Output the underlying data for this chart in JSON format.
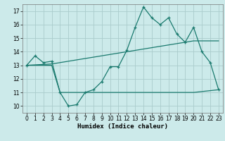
{
  "xlabel": "Humidex (Indice chaleur)",
  "background_color": "#cceaea",
  "grid_color": "#aacccc",
  "line_color": "#1a7a6e",
  "xlim": [
    -0.5,
    23.5
  ],
  "ylim": [
    9.5,
    17.5
  ],
  "yticks": [
    10,
    11,
    12,
    13,
    14,
    15,
    16,
    17
  ],
  "xticks": [
    0,
    1,
    2,
    3,
    4,
    5,
    6,
    7,
    8,
    9,
    10,
    11,
    12,
    13,
    14,
    15,
    16,
    17,
    18,
    19,
    20,
    21,
    22,
    23
  ],
  "line1_x": [
    0,
    1,
    2,
    3,
    4,
    5,
    6,
    7,
    8,
    9,
    10,
    11,
    12,
    13,
    14,
    15,
    16,
    17,
    18,
    19,
    20,
    21,
    22,
    23
  ],
  "line1_y": [
    13.0,
    13.7,
    13.2,
    13.3,
    11.0,
    10.0,
    10.1,
    11.0,
    11.2,
    11.8,
    12.9,
    12.9,
    14.1,
    15.8,
    17.3,
    16.5,
    16.0,
    16.5,
    15.3,
    14.7,
    15.8,
    14.0,
    13.2,
    11.2
  ],
  "line2_x": [
    0,
    3,
    20,
    23
  ],
  "line2_y": [
    13.0,
    13.1,
    14.8,
    14.8
  ],
  "line3_x": [
    0,
    3,
    4,
    20,
    23
  ],
  "line3_y": [
    13.0,
    13.0,
    11.0,
    11.0,
    11.2
  ]
}
